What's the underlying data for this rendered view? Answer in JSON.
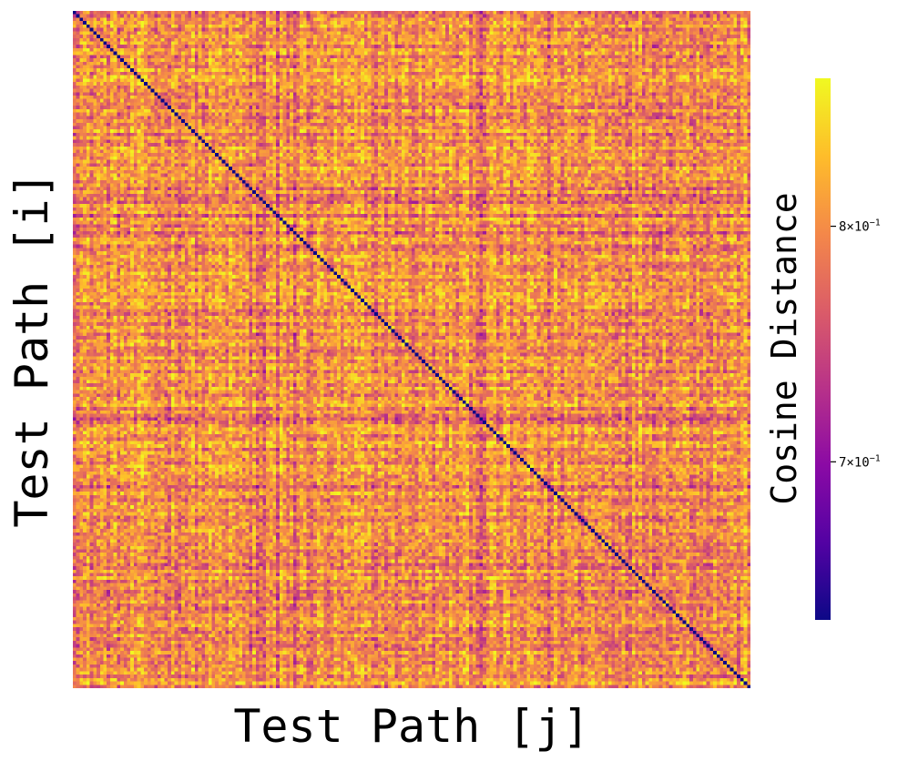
{
  "chart_data": {
    "type": "heatmap",
    "title": "",
    "xlabel": "Test Path [j]",
    "ylabel": "Test Path [i]",
    "grid": false,
    "matrix_size": 200,
    "colormap": "plasma",
    "colorbar": {
      "label": "Cosine Distance",
      "scale": "log",
      "range": [
        0.64,
        0.87
      ],
      "ticks": [
        {
          "value": 0.7,
          "mantissa": "7",
          "label": "7 × 10⁻¹"
        },
        {
          "value": 0.8,
          "mantissa": "8",
          "label": "8 × 10⁻¹"
        }
      ]
    },
    "value_summary": {
      "diagonal": 0.64,
      "typical": 0.8,
      "low": 0.72,
      "high": 0.86
    }
  }
}
